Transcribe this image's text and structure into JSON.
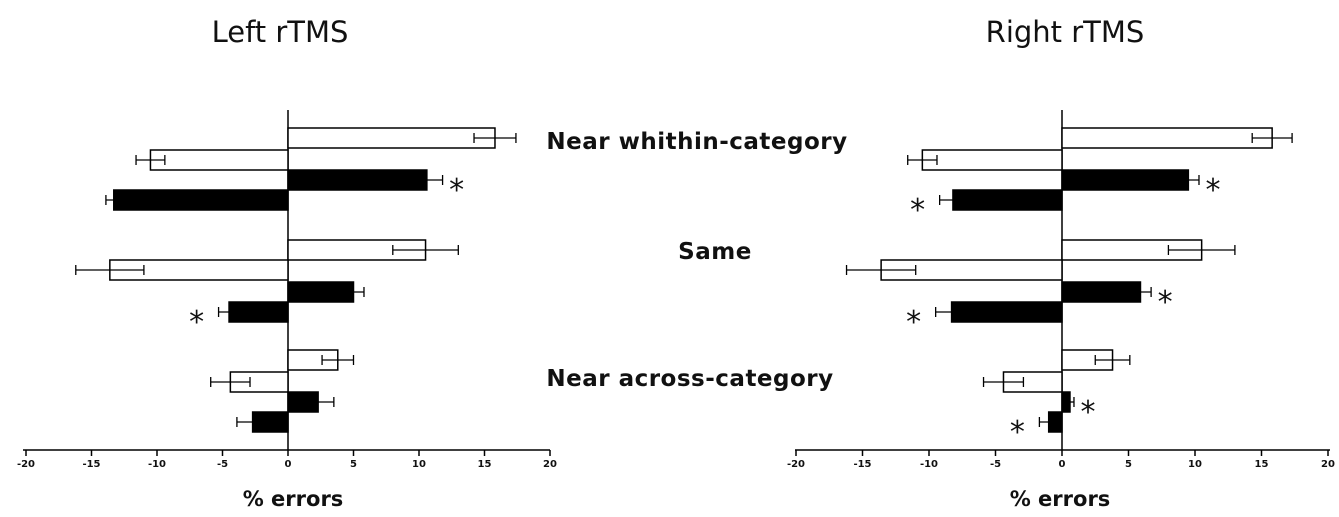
{
  "chart_data": [
    {
      "type": "bar",
      "orientation": "horizontal",
      "title": "Left rTMS",
      "xlabel": "% errors",
      "xlim": [
        -20,
        20
      ],
      "xticks": [
        -20,
        -15,
        -10,
        -5,
        0,
        5,
        10,
        15,
        20
      ],
      "xtick_labels": [
        "-20",
        "-15",
        "-10",
        "-5",
        "0",
        "5",
        "10",
        "15",
        "20"
      ],
      "grid": false,
      "categories": [
        "Near whithin-category",
        "Same",
        "Near across-category"
      ],
      "bars": [
        {
          "category": "Near whithin-category",
          "fill": "white",
          "value": 15.8,
          "error": 1.6,
          "significant": false
        },
        {
          "category": "Near whithin-category",
          "fill": "white",
          "value": -10.5,
          "error": 1.1,
          "significant": false
        },
        {
          "category": "Near whithin-category",
          "fill": "black",
          "value": 10.6,
          "error": 1.2,
          "significant": true
        },
        {
          "category": "Near whithin-category",
          "fill": "black",
          "value": -13.3,
          "error": 0.6,
          "significant": false
        },
        {
          "category": "Same",
          "fill": "white",
          "value": 10.5,
          "error": 2.5,
          "significant": false
        },
        {
          "category": "Same",
          "fill": "white",
          "value": -13.6,
          "error": 2.6,
          "significant": false
        },
        {
          "category": "Same",
          "fill": "black",
          "value": 5.0,
          "error": 0.8,
          "significant": false
        },
        {
          "category": "Same",
          "fill": "black",
          "value": -4.5,
          "error": 0.8,
          "significant": true
        },
        {
          "category": "Near across-category",
          "fill": "white",
          "value": 3.8,
          "error": 1.2,
          "significant": false
        },
        {
          "category": "Near across-category",
          "fill": "white",
          "value": -4.4,
          "error": 1.5,
          "significant": false
        },
        {
          "category": "Near across-category",
          "fill": "black",
          "value": 2.3,
          "error": 1.2,
          "significant": false
        },
        {
          "category": "Near across-category",
          "fill": "black",
          "value": -2.7,
          "error": 1.2,
          "significant": false
        }
      ],
      "annotations": [
        "*",
        "*"
      ]
    },
    {
      "type": "bar",
      "orientation": "horizontal",
      "title": "Right rTMS",
      "xlabel": "% errors",
      "xlim": [
        -20,
        20
      ],
      "xticks": [
        -20,
        -15,
        -10,
        -5,
        0,
        5,
        10,
        15,
        20
      ],
      "xtick_labels": [
        "-20",
        "-15",
        "-10",
        "-5",
        "0",
        "5",
        "10",
        "15",
        "20"
      ],
      "grid": false,
      "categories": [
        "Near whithin-category",
        "Same",
        "Near across-category"
      ],
      "bars": [
        {
          "category": "Near whithin-category",
          "fill": "white",
          "value": 15.8,
          "error": 1.5,
          "significant": false
        },
        {
          "category": "Near whithin-category",
          "fill": "white",
          "value": -10.5,
          "error": 1.1,
          "significant": false
        },
        {
          "category": "Near whithin-category",
          "fill": "black",
          "value": 9.5,
          "error": 0.8,
          "significant": true
        },
        {
          "category": "Near whithin-category",
          "fill": "black",
          "value": -8.2,
          "error": 1.0,
          "significant": true
        },
        {
          "category": "Same",
          "fill": "white",
          "value": 10.5,
          "error": 2.5,
          "significant": false
        },
        {
          "category": "Same",
          "fill": "white",
          "value": -13.6,
          "error": 2.6,
          "significant": false
        },
        {
          "category": "Same",
          "fill": "black",
          "value": 5.9,
          "error": 0.8,
          "significant": true
        },
        {
          "category": "Same",
          "fill": "black",
          "value": -8.3,
          "error": 1.2,
          "significant": true
        },
        {
          "category": "Near across-category",
          "fill": "white",
          "value": 3.8,
          "error": 1.3,
          "significant": false
        },
        {
          "category": "Near across-category",
          "fill": "white",
          "value": -4.4,
          "error": 1.5,
          "significant": false
        },
        {
          "category": "Near across-category",
          "fill": "black",
          "value": 0.6,
          "error": 0.3,
          "significant": true
        },
        {
          "category": "Near across-category",
          "fill": "black",
          "value": -1.0,
          "error": 0.7,
          "significant": true
        }
      ],
      "annotations": [
        "*",
        "*",
        "*",
        "*",
        "*",
        "*"
      ]
    }
  ]
}
